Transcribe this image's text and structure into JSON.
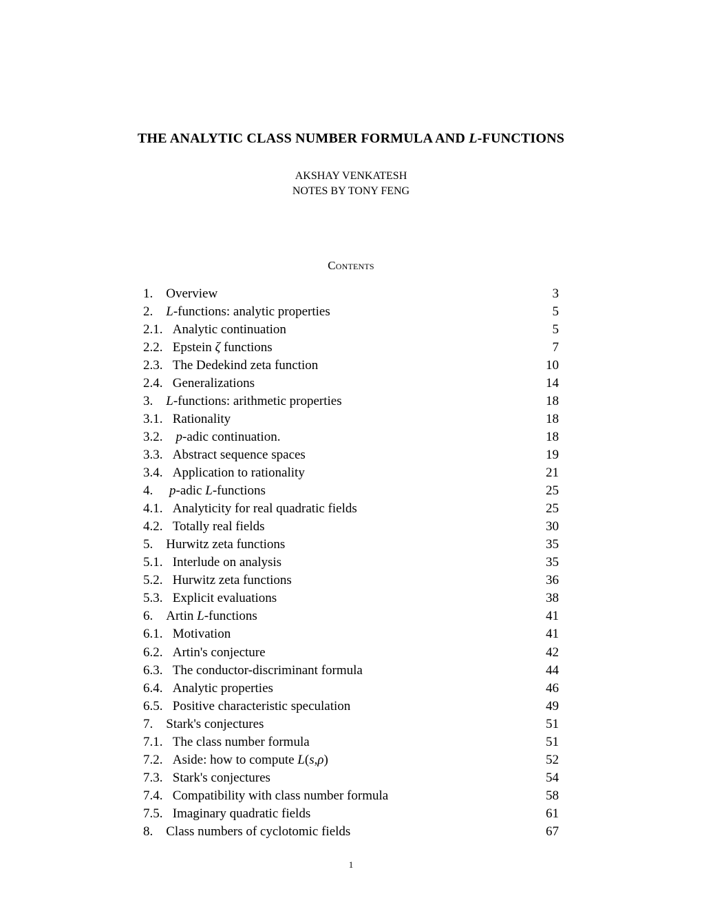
{
  "title_before": "THE ANALYTIC CLASS NUMBER FORMULA AND ",
  "title_L": "L",
  "title_after": "-FUNCTIONS",
  "author1": "AKSHAY VENKATESH",
  "author2": "NOTES BY TONY FENG",
  "contents_C": "C",
  "contents_rest": "ontents",
  "page_number": "1",
  "toc": [
    {
      "num": "1.",
      "indent": "sec",
      "title_parts": [
        {
          "t": "Overview"
        }
      ],
      "page": "3"
    },
    {
      "num": "2.",
      "indent": "sec",
      "title_parts": [
        {
          "t": "L",
          "it": true
        },
        {
          "t": "-functions: analytic properties"
        }
      ],
      "page": "5"
    },
    {
      "num": "2.1.",
      "indent": "sub",
      "title_parts": [
        {
          "t": "Analytic continuation"
        }
      ],
      "page": "5"
    },
    {
      "num": "2.2.",
      "indent": "sub",
      "title_parts": [
        {
          "t": "Epstein "
        },
        {
          "t": "ζ",
          "it": true
        },
        {
          "t": " functions"
        }
      ],
      "page": "7"
    },
    {
      "num": "2.3.",
      "indent": "sub",
      "title_parts": [
        {
          "t": "The Dedekind zeta function"
        }
      ],
      "page": "10"
    },
    {
      "num": "2.4.",
      "indent": "sub",
      "title_parts": [
        {
          "t": "Generalizations"
        }
      ],
      "page": "14"
    },
    {
      "num": "3.",
      "indent": "sec",
      "title_parts": [
        {
          "t": "L",
          "it": true
        },
        {
          "t": "-functions: arithmetic properties"
        }
      ],
      "page": "18"
    },
    {
      "num": "3.1.",
      "indent": "sub",
      "title_parts": [
        {
          "t": "Rationality"
        }
      ],
      "page": "18"
    },
    {
      "num": "3.2.",
      "indent": "sub",
      "title_parts": [
        {
          "t": " "
        },
        {
          "t": "p",
          "it": true
        },
        {
          "t": "-adic continuation."
        }
      ],
      "page": "18"
    },
    {
      "num": "3.3.",
      "indent": "sub",
      "title_parts": [
        {
          "t": "Abstract sequence spaces"
        }
      ],
      "page": "19"
    },
    {
      "num": "3.4.",
      "indent": "sub",
      "title_parts": [
        {
          "t": "Application to rationality"
        }
      ],
      "page": "21"
    },
    {
      "num": "4.",
      "indent": "sec",
      "title_parts": [
        {
          "t": " "
        },
        {
          "t": "p",
          "it": true
        },
        {
          "t": "-adic "
        },
        {
          "t": "L",
          "it": true
        },
        {
          "t": "-functions"
        }
      ],
      "page": "25"
    },
    {
      "num": "4.1.",
      "indent": "sub",
      "title_parts": [
        {
          "t": "Analyticity for real quadratic fields"
        }
      ],
      "page": "25"
    },
    {
      "num": "4.2.",
      "indent": "sub",
      "title_parts": [
        {
          "t": "Totally real fields"
        }
      ],
      "page": "30"
    },
    {
      "num": "5.",
      "indent": "sec",
      "title_parts": [
        {
          "t": "Hurwitz zeta functions"
        }
      ],
      "page": "35"
    },
    {
      "num": "5.1.",
      "indent": "sub",
      "title_parts": [
        {
          "t": "Interlude on analysis"
        }
      ],
      "page": "35"
    },
    {
      "num": "5.2.",
      "indent": "sub",
      "title_parts": [
        {
          "t": "Hurwitz zeta functions"
        }
      ],
      "page": "36"
    },
    {
      "num": "5.3.",
      "indent": "sub",
      "title_parts": [
        {
          "t": "Explicit evaluations"
        }
      ],
      "page": "38"
    },
    {
      "num": "6.",
      "indent": "sec",
      "title_parts": [
        {
          "t": "Artin "
        },
        {
          "t": "L",
          "it": true
        },
        {
          "t": "-functions"
        }
      ],
      "page": "41"
    },
    {
      "num": "6.1.",
      "indent": "sub",
      "title_parts": [
        {
          "t": "Motivation"
        }
      ],
      "page": "41"
    },
    {
      "num": "6.2.",
      "indent": "sub",
      "title_parts": [
        {
          "t": "Artin's conjecture"
        }
      ],
      "page": "42"
    },
    {
      "num": "6.3.",
      "indent": "sub",
      "title_parts": [
        {
          "t": "The conductor-discriminant formula"
        }
      ],
      "page": "44"
    },
    {
      "num": "6.4.",
      "indent": "sub",
      "title_parts": [
        {
          "t": "Analytic properties"
        }
      ],
      "page": "46"
    },
    {
      "num": "6.5.",
      "indent": "sub",
      "title_parts": [
        {
          "t": "Positive characteristic speculation"
        }
      ],
      "page": "49"
    },
    {
      "num": "7.",
      "indent": "sec",
      "title_parts": [
        {
          "t": "Stark's conjectures"
        }
      ],
      "page": "51"
    },
    {
      "num": "7.1.",
      "indent": "sub",
      "title_parts": [
        {
          "t": "The class number formula"
        }
      ],
      "page": "51"
    },
    {
      "num": "7.2.",
      "indent": "sub",
      "title_parts": [
        {
          "t": "Aside: how to compute "
        },
        {
          "t": "L",
          "it": true
        },
        {
          "t": "("
        },
        {
          "t": "s",
          "it": true
        },
        {
          "t": ","
        },
        {
          "t": "ρ",
          "it": true
        },
        {
          "t": ")"
        }
      ],
      "page": "52"
    },
    {
      "num": "7.3.",
      "indent": "sub",
      "title_parts": [
        {
          "t": "Stark's conjectures"
        }
      ],
      "page": "54"
    },
    {
      "num": "7.4.",
      "indent": "sub",
      "title_parts": [
        {
          "t": "Compatibility with class number formula"
        }
      ],
      "page": "58"
    },
    {
      "num": "7.5.",
      "indent": "sub",
      "title_parts": [
        {
          "t": "Imaginary quadratic fields"
        }
      ],
      "page": "61"
    },
    {
      "num": "8.",
      "indent": "sec",
      "title_parts": [
        {
          "t": "Class numbers of cyclotomic fields"
        }
      ],
      "page": "67"
    }
  ]
}
